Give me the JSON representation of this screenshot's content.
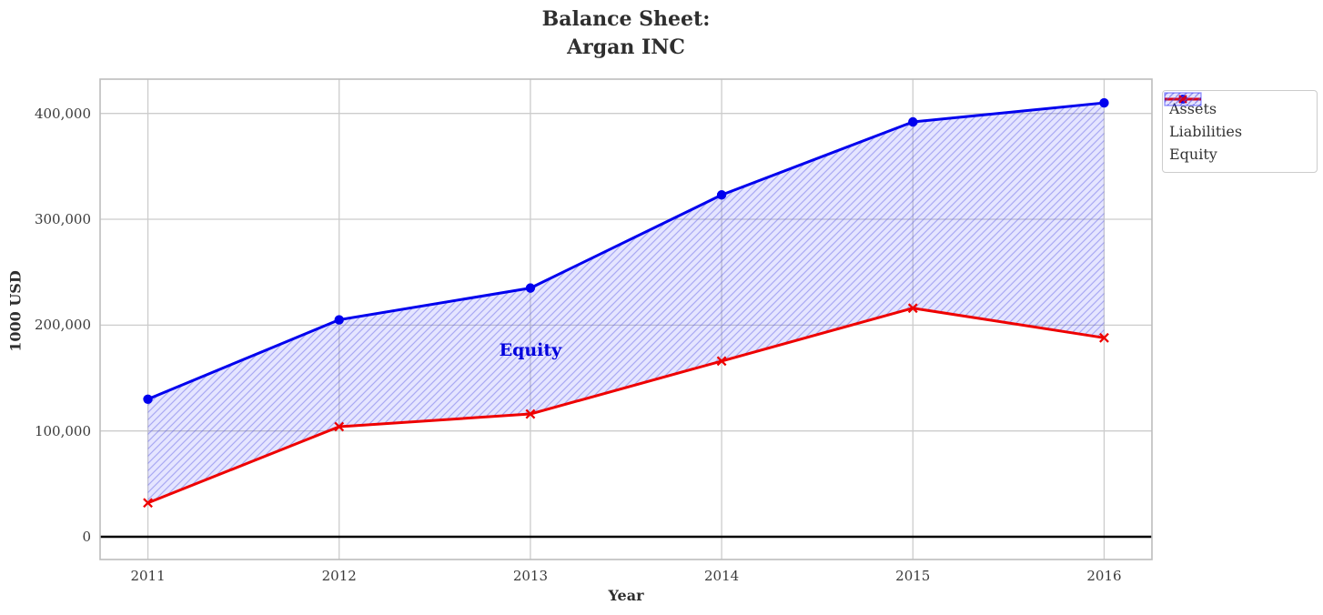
{
  "title": {
    "line1": "Balance Sheet:",
    "line2": "Argan INC"
  },
  "chart_data": {
    "type": "area",
    "title": "Balance Sheet:\nArgan INC",
    "xlabel": "Year",
    "ylabel": "1000 USD",
    "x": [
      2011,
      2012,
      2013,
      2014,
      2015,
      2016
    ],
    "series": [
      {
        "name": "Assets",
        "marker": "circle",
        "color": "#0000ee",
        "values": [
          130000,
          205000,
          235000,
          323000,
          392000,
          410000
        ]
      },
      {
        "name": "Liabilities",
        "marker": "x",
        "color": "#ee0000",
        "values": [
          32000,
          104000,
          116000,
          166000,
          216000,
          188000
        ]
      }
    ],
    "fill_between": {
      "label": "Equity",
      "between": [
        "Assets",
        "Liabilities"
      ],
      "style": "hatched",
      "annotation": {
        "text": "Equity",
        "x": 2013,
        "y": 175000,
        "color": "#0000dd"
      }
    },
    "xticks": [
      {
        "value": 2011,
        "label": "2011"
      },
      {
        "value": 2012,
        "label": "2012"
      },
      {
        "value": 2013,
        "label": "2013"
      },
      {
        "value": 2014,
        "label": "2014"
      },
      {
        "value": 2015,
        "label": "2015"
      },
      {
        "value": 2016,
        "label": "2016"
      }
    ],
    "yticks": [
      {
        "value": 0,
        "label": "0"
      },
      {
        "value": 100000,
        "label": "100,000"
      },
      {
        "value": 200000,
        "label": "200,000"
      },
      {
        "value": 300000,
        "label": "300,000"
      },
      {
        "value": 400000,
        "label": "400,000"
      }
    ],
    "xlim": [
      2010.75,
      2016.25
    ],
    "ylim": [
      -21500,
      432400
    ],
    "grid": true,
    "zero_line": true,
    "legend_position": "outside-upper-right",
    "legend_entries": [
      "Assets",
      "Liabilities",
      "Equity"
    ]
  },
  "colors": {
    "assets": "#0000ee",
    "liabilities": "#ee0000",
    "equity_fill": "rgba(0,0,255,0.10)",
    "equity_hatch": "rgba(80,80,225,0.40)",
    "grid": "#cccccc",
    "spine": "#bdbdbd",
    "zero_line": "#000000",
    "text": "#2e2e2e",
    "annotation_text": "#0000dd"
  }
}
